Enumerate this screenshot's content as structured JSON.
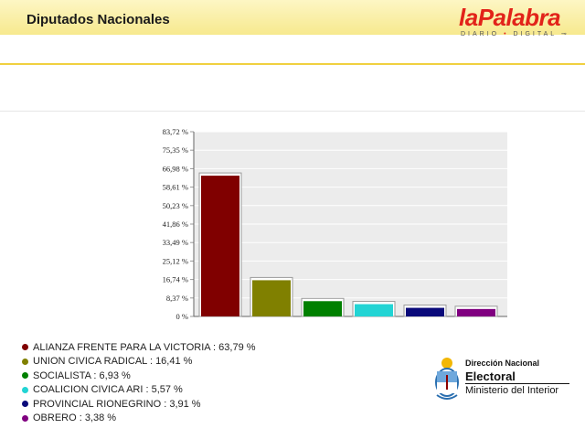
{
  "header": {
    "title": "Diputados Nacionales",
    "logo_part1": "la",
    "logo_part2": "Palabra",
    "logo_sub_part1": "DIARIO",
    "logo_sub_sep": " • ",
    "logo_sub_part2": "DIGITAL"
  },
  "chart_data": {
    "type": "bar",
    "categories": [
      "ALIANZA FRENTE PARA LA VICTORIA",
      "UNION CIVICA RADICAL",
      "SOCIALISTA",
      "COALICION CIVICA ARI",
      "PROVINCIAL RIONEGRINO",
      "OBRERO"
    ],
    "values": [
      63.79,
      16.41,
      6.93,
      5.57,
      3.91,
      3.38
    ],
    "colors": [
      "#800000",
      "#808000",
      "#008000",
      "#22d4d4",
      "#0a0a7a",
      "#800080"
    ],
    "yticks": [
      "0 %",
      "8,37 %",
      "16,74 %",
      "25,12 %",
      "33,49 %",
      "41,86 %",
      "50,23 %",
      "58,61 %",
      "66,98 %",
      "75,35 %",
      "83,72 %"
    ],
    "ylim": [
      0,
      83.72
    ],
    "grid": true
  },
  "legend": [
    {
      "label": "ALIANZA FRENTE PARA LA VICTORIA : 63,79 %",
      "color": "#800000"
    },
    {
      "label": "UNION CIVICA RADICAL : 16,41 %",
      "color": "#808000"
    },
    {
      "label": "SOCIALISTA : 6,93 %",
      "color": "#008000"
    },
    {
      "label": "COALICION CIVICA ARI : 5,57 %",
      "color": "#22d4d4"
    },
    {
      "label": "PROVINCIAL RIONEGRINO : 3,91 %",
      "color": "#0a0a7a"
    },
    {
      "label": "OBRERO : 3,38 %",
      "color": "#800080"
    }
  ],
  "footer_logo": {
    "line1": "Dirección Nacional",
    "line2": "Electoral",
    "line3": "Ministerio del Interior"
  }
}
